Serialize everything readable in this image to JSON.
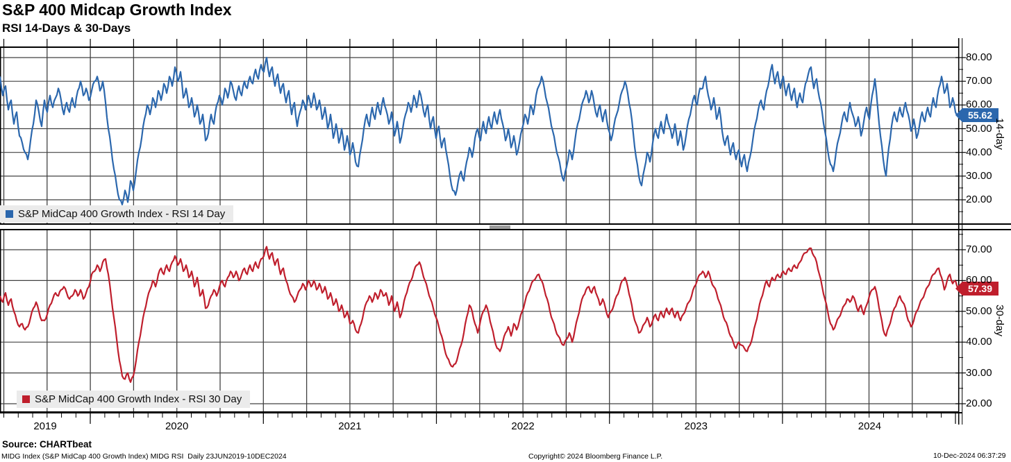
{
  "header": {
    "title": "S&P 400 Midcap Growth Index",
    "subtitle": "RSI 14-Days & 30-Days"
  },
  "x_axis": {
    "year_labels": [
      "2019",
      "2020",
      "2021",
      "2022",
      "2023",
      "2024"
    ],
    "range": "23JUN2019-10DEC2024",
    "frequency": "Daily"
  },
  "styles": {
    "grid_color": "#414141",
    "frame_color": "#000000",
    "legend_bg": "#ebebeb",
    "splitter_color": "#9c9c9c",
    "tag_text_color": "#ffffff"
  },
  "chart_data": [
    {
      "type": "line",
      "panel": "top",
      "name": "RSI 14 Day",
      "legend": "S&P MidCap 400 Growth Index - RSI 14 Day",
      "color": "#2b67ad",
      "axis_label": "14-day",
      "last_value": 55.62,
      "last_value_label": "55.62",
      "yticks": [
        20,
        30,
        40,
        50,
        60,
        70,
        80
      ],
      "ytick_labels": [
        "20.00",
        "30.00",
        "40.00",
        "50.00",
        "60.00",
        "70.00",
        "80.00"
      ],
      "x_start": "23JUN2019",
      "x_end": "10DEC2024",
      "grid": true,
      "values_evenly_spaced": [
        72,
        64,
        68,
        58,
        62,
        52,
        57,
        47,
        44,
        40,
        37,
        45,
        52,
        62,
        57,
        51,
        62,
        57,
        64,
        59,
        63,
        67,
        62,
        56,
        61,
        57,
        63,
        59,
        66,
        70,
        64,
        67,
        62,
        66,
        70,
        72,
        66,
        70,
        61,
        50,
        42,
        33,
        26,
        20,
        18,
        24,
        19,
        28,
        24,
        32,
        40,
        46,
        54,
        60,
        56,
        63,
        59,
        66,
        62,
        69,
        65,
        72,
        68,
        76,
        70,
        74,
        63,
        67,
        59,
        63,
        55,
        60,
        52,
        56,
        45,
        48,
        56,
        52,
        60,
        64,
        60,
        67,
        63,
        70,
        66,
        62,
        68,
        64,
        70,
        67,
        72,
        69,
        75,
        71,
        77,
        74,
        80,
        72,
        76,
        68,
        73,
        65,
        69,
        61,
        66,
        56,
        61,
        51,
        57,
        62,
        58,
        64,
        59,
        65,
        58,
        62,
        54,
        59,
        50,
        56,
        46,
        52,
        44,
        50,
        41,
        47,
        39,
        44,
        36,
        34,
        42,
        50,
        56,
        51,
        59,
        54,
        61,
        56,
        63,
        58,
        52,
        57,
        47,
        53,
        44,
        50,
        56,
        61,
        57,
        64,
        59,
        66,
        61,
        55,
        60,
        50,
        55,
        46,
        51,
        42,
        46,
        38,
        30,
        24,
        22,
        28,
        32,
        28,
        36,
        42,
        38,
        46,
        50,
        45,
        53,
        48,
        55,
        50,
        57,
        52,
        58,
        52,
        45,
        50,
        42,
        47,
        39,
        44,
        50,
        56,
        52,
        60,
        56,
        64,
        68,
        72,
        67,
        61,
        55,
        49,
        43,
        38,
        32,
        28,
        34,
        41,
        37,
        45,
        52,
        57,
        62,
        66,
        61,
        66,
        60,
        55,
        60,
        53,
        58,
        50,
        45,
        51,
        56,
        61,
        66,
        70,
        65,
        58,
        48,
        38,
        30,
        26,
        33,
        40,
        36,
        44,
        50,
        46,
        53,
        48,
        56,
        51,
        46,
        52,
        43,
        49,
        41,
        47,
        54,
        59,
        64,
        60,
        67,
        67,
        72,
        64,
        58,
        63,
        54,
        59,
        49,
        43,
        47,
        39,
        44,
        37,
        41,
        34,
        39,
        32,
        38,
        45,
        52,
        58,
        62,
        58,
        66,
        71,
        77,
        69,
        74,
        67,
        72,
        64,
        69,
        62,
        67,
        59,
        65,
        61,
        69,
        73,
        76,
        67,
        71,
        63,
        57,
        49,
        41,
        35,
        32,
        40,
        46,
        52,
        57,
        53,
        61,
        56,
        51,
        55,
        47,
        53,
        59,
        54,
        64,
        71,
        59,
        47,
        37,
        30,
        42,
        51,
        57,
        53,
        59,
        55,
        61,
        56,
        49,
        54,
        46,
        51,
        57,
        53,
        59,
        55,
        63,
        59,
        67,
        72,
        65,
        69,
        59,
        63,
        57,
        55.62
      ]
    },
    {
      "type": "line",
      "panel": "bottom",
      "name": "RSI 30 Day",
      "legend": "S&P MidCap 400 Growth Index - RSI 30 Day",
      "color": "#bf1e2c",
      "axis_label": "30-day",
      "last_value": 57.39,
      "last_value_label": "57.39",
      "yticks": [
        20,
        30,
        40,
        50,
        60,
        70
      ],
      "ytick_labels": [
        "20.00",
        "30.00",
        "40.00",
        "50.00",
        "60.00",
        "70.00"
      ],
      "x_start": "23JUN2019",
      "x_end": "10DEC2024",
      "grid": true,
      "values_evenly_spaced": [
        55,
        53,
        56,
        52,
        54,
        50,
        47,
        45,
        46,
        44,
        45,
        48,
        51,
        53,
        50,
        47,
        47,
        49,
        52,
        54,
        56,
        55,
        57,
        58,
        56,
        54,
        55,
        57,
        55,
        57,
        54,
        56,
        58,
        62,
        63,
        65,
        63,
        66,
        67,
        62,
        55,
        48,
        41,
        34,
        29,
        28,
        30,
        27,
        29,
        34,
        40,
        45,
        50,
        54,
        57,
        60,
        58,
        62,
        64,
        62,
        65,
        63,
        66,
        68,
        65,
        67,
        63,
        65,
        61,
        63,
        58,
        61,
        55,
        57,
        51,
        52,
        55,
        57,
        55,
        58,
        60,
        58,
        61,
        63,
        61,
        63,
        60,
        62,
        64,
        62,
        65,
        63,
        66,
        64,
        67,
        68,
        71,
        67,
        69,
        65,
        67,
        62,
        64,
        60,
        57,
        55,
        53,
        55,
        57,
        59,
        57,
        60,
        58,
        60,
        57,
        59,
        56,
        58,
        54,
        56,
        52,
        54,
        50,
        52,
        48,
        50,
        46,
        47,
        44,
        43,
        46,
        50,
        53,
        55,
        53,
        56,
        54,
        57,
        55,
        56,
        52,
        55,
        50,
        53,
        48,
        51,
        55,
        58,
        60,
        63,
        65,
        66,
        63,
        60,
        57,
        54,
        51,
        48,
        45,
        42,
        38,
        35,
        33,
        32,
        33,
        36,
        39,
        43,
        48,
        52,
        50,
        46,
        43,
        47,
        50,
        52,
        49,
        45,
        41,
        38,
        37,
        40,
        43,
        45,
        42,
        46,
        44,
        47,
        50,
        53,
        56,
        58,
        60,
        61,
        62,
        60,
        57,
        54,
        50,
        47,
        44,
        42,
        40,
        39,
        41,
        43,
        40,
        44,
        48,
        52,
        55,
        57,
        58,
        56,
        58,
        55,
        52,
        54,
        51,
        48,
        50,
        52,
        55,
        57,
        60,
        61,
        58,
        54,
        49,
        46,
        43,
        44,
        46,
        48,
        45,
        47,
        49,
        47,
        50,
        48,
        51,
        49,
        51,
        48,
        50,
        47,
        49,
        51,
        53,
        55,
        58,
        60,
        62,
        63,
        61,
        63,
        60,
        58,
        56,
        53,
        50,
        47,
        45,
        42,
        40,
        38,
        40,
        39,
        38,
        37,
        39,
        42,
        46,
        50,
        54,
        57,
        60,
        58,
        61,
        60,
        62,
        61,
        63,
        62,
        64,
        63,
        65,
        64,
        66,
        68,
        69,
        70,
        70.5,
        68,
        66,
        62,
        58,
        54,
        50,
        46,
        44,
        46,
        48,
        50,
        52,
        54,
        53,
        55,
        53,
        50,
        52,
        49,
        52,
        55,
        57,
        58,
        54,
        49,
        44,
        42,
        45,
        48,
        51,
        53,
        55,
        53,
        51,
        47,
        45,
        47,
        50,
        52,
        54,
        56,
        58,
        60,
        62,
        63,
        64,
        61,
        57,
        60,
        62,
        59,
        60,
        57.39
      ]
    }
  ],
  "footer": {
    "source": "Source: CHARTbeat",
    "description": "MIDG Index (S&P MidCap 400 Growth Index) MIDG RSI  Daily 23JUN2019-10DEC2024",
    "copyright": "Copyright© 2024 Bloomberg Finance L.P.",
    "datetime": "10-Dec-2024 06:37:29"
  }
}
